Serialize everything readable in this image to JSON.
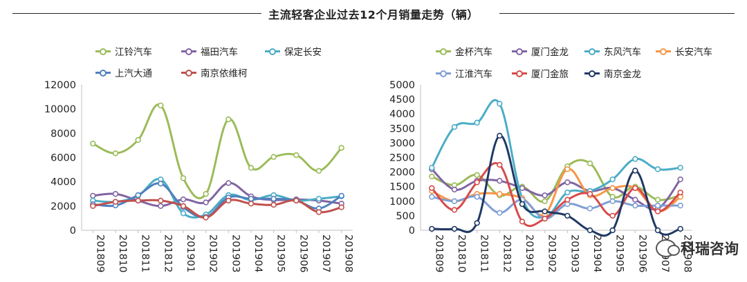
{
  "page_title": "主流轻客企业过去12个月销量走势（辆）",
  "watermark": "科瑞咨询",
  "chart_data": [
    {
      "type": "line",
      "x": [
        "201809",
        "201810",
        "201811",
        "201812",
        "201901",
        "201902",
        "201903",
        "201904",
        "201905",
        "201906",
        "201907",
        "201908"
      ],
      "ylim": [
        0,
        12000
      ],
      "yticks": [
        0,
        2000,
        4000,
        6000,
        8000,
        10000,
        12000
      ],
      "ytick_labels": [
        "0",
        "2000",
        "4000",
        "6000",
        "8000",
        "10000",
        "12000"
      ],
      "grid": false,
      "legend_position": "top",
      "series": [
        {
          "name": "江铃汽车",
          "color": "#9bbb59",
          "values": [
            7150,
            6350,
            7450,
            10300,
            4300,
            3000,
            9150,
            5150,
            6050,
            6200,
            4900,
            6800
          ]
        },
        {
          "name": "福田汽车",
          "color": "#8064a2",
          "values": [
            2850,
            3000,
            2450,
            2000,
            2550,
            2300,
            3900,
            2800,
            2500,
            2550,
            2450,
            2200
          ]
        },
        {
          "name": "保定长安",
          "color": "#4bacc6",
          "values": [
            2450,
            2350,
            2850,
            4200,
            1400,
            1300,
            2900,
            2500,
            2900,
            2450,
            2600,
            2800
          ]
        },
        {
          "name": "上汽大通",
          "color": "#4f81bd",
          "values": [
            2150,
            2050,
            2900,
            3850,
            1900,
            1100,
            2700,
            2600,
            2600,
            2450,
            1800,
            2850
          ]
        },
        {
          "name": "南京依维柯",
          "color": "#c0504d",
          "values": [
            2000,
            2350,
            2450,
            2450,
            2000,
            1050,
            2450,
            2200,
            2100,
            2450,
            1500,
            1900
          ]
        }
      ]
    },
    {
      "type": "line",
      "x": [
        "201809",
        "201810",
        "201811",
        "201812",
        "201901",
        "201902",
        "201903",
        "201904",
        "201905",
        "201906",
        "201907",
        "201908"
      ],
      "ylim": [
        0,
        5000
      ],
      "yticks": [
        0,
        500,
        1000,
        1500,
        2000,
        2500,
        3000,
        3500,
        4000,
        4500,
        5000
      ],
      "ytick_labels": [
        "0",
        "500",
        "1000",
        "1500",
        "2000",
        "2500",
        "3000",
        "3500",
        "4000",
        "4500",
        "5000"
      ],
      "grid": false,
      "legend_position": "top",
      "series": [
        {
          "name": "金杯汽车",
          "color": "#9bbb59",
          "values": [
            1850,
            1550,
            1900,
            1200,
            1500,
            1000,
            2200,
            2300,
            1150,
            1500,
            1050,
            1200
          ]
        },
        {
          "name": "厦门金龙",
          "color": "#8064a2",
          "values": [
            2100,
            1400,
            1700,
            1700,
            1450,
            1200,
            1650,
            1350,
            1450,
            1050,
            750,
            1750
          ]
        },
        {
          "name": "东风汽车",
          "color": "#4bacc6",
          "values": [
            2150,
            3550,
            3700,
            4350,
            1100,
            450,
            1300,
            1350,
            1750,
            2450,
            2100,
            2150
          ]
        },
        {
          "name": "长安汽车",
          "color": "#f79646",
          "values": [
            1350,
            1000,
            1250,
            1250,
            1100,
            550,
            2100,
            1200,
            1450,
            1450,
            650,
            1150
          ]
        },
        {
          "name": "江淮汽车",
          "color": "#7f9fd6",
          "values": [
            1150,
            1000,
            1150,
            600,
            1050,
            400,
            900,
            750,
            1000,
            850,
            850,
            850
          ]
        },
        {
          "name": "厦门金旅",
          "color": "#d64a4a",
          "values": [
            1450,
            700,
            1650,
            2250,
            300,
            400,
            1050,
            1250,
            500,
            1450,
            650,
            1300
          ]
        },
        {
          "name": "南京金龙",
          "color": "#1f3864",
          "values": [
            50,
            50,
            250,
            3250,
            900,
            650,
            500,
            0,
            0,
            2050,
            0,
            50
          ]
        }
      ]
    }
  ]
}
